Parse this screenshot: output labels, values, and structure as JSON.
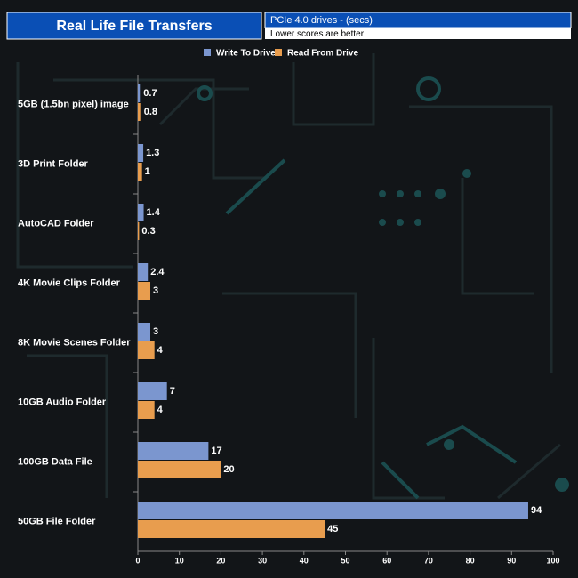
{
  "chart_data": {
    "type": "hbar",
    "title": "Real Life File Transfers",
    "subtitle": "PCIe 4.0 drives - (secs)",
    "note": "Lower scores are better",
    "categories": [
      "5GB (1.5bn pixel) image",
      "3D Print Folder",
      "AutoCAD Folder",
      "4K Movie Clips Folder",
      "8K Movie Scenes Folder",
      "10GB Audio Folder",
      "100GB Data File",
      "50GB File Folder"
    ],
    "series": [
      {
        "name": "Write To  Drive",
        "color": "#7b96cf",
        "values": [
          0.7,
          1.3,
          1.4,
          2.4,
          3,
          7,
          17,
          94
        ]
      },
      {
        "name": "Read From  Drive",
        "color": "#e89d4e",
        "values": [
          0.8,
          1,
          0.3,
          3,
          4,
          4,
          20,
          45
        ]
      }
    ],
    "xlim": [
      0,
      100
    ],
    "xticks": [
      0,
      10,
      20,
      30,
      40,
      50,
      60,
      70,
      80,
      90,
      100
    ]
  }
}
